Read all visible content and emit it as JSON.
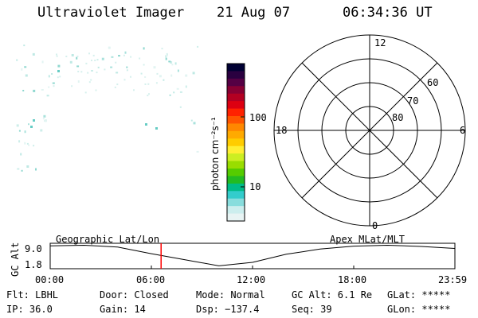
{
  "header": {
    "instrument": "Ultraviolet Imager",
    "date": "21 Aug 07",
    "time": "06:34:36 UT"
  },
  "colorbar": {
    "label": "photon cm⁻²s⁻¹",
    "ticks": [
      "100",
      "10"
    ],
    "colors": [
      "#000033",
      "#2a0040",
      "#550044",
      "#880033",
      "#b30022",
      "#dd0011",
      "#ff2200",
      "#ff5500",
      "#ff8800",
      "#ffaa00",
      "#ffcc00",
      "#ffee33",
      "#ccee22",
      "#99dd00",
      "#55cc00",
      "#22bb22",
      "#00bb88",
      "#33cccc",
      "#88dddd",
      "#cceeee",
      "#e8f4f4"
    ]
  },
  "polar": {
    "mlt_labels": [
      "12",
      "18",
      "6",
      "0"
    ],
    "lat_labels": [
      "60",
      "70",
      "80"
    ]
  },
  "timeline": {
    "y_axis_label": "GC Alt",
    "y_ticks": [
      "9.0",
      "1.8"
    ],
    "left_title": "Geographic Lat/Lon",
    "right_title": "Apex MLat/MLT",
    "x_ticks": [
      "00:00",
      "06:00",
      "12:00",
      "18:00",
      "23:59"
    ],
    "current_time_hours": 6.577,
    "current_time_color": "#ff0000",
    "altitude_samples": [
      [
        0,
        8.7
      ],
      [
        2,
        8.9
      ],
      [
        4,
        8.3
      ],
      [
        6,
        6.0
      ],
      [
        8,
        3.9
      ],
      [
        10,
        1.8
      ],
      [
        12,
        3.0
      ],
      [
        14,
        5.8
      ],
      [
        16,
        7.6
      ],
      [
        18,
        8.6
      ],
      [
        20,
        8.9
      ],
      [
        22,
        8.5
      ],
      [
        23.98,
        7.8
      ]
    ]
  },
  "status": {
    "filter": "Flt: LBHL",
    "door": "Door: Closed",
    "mode": "Mode: Normal",
    "gc_alt": "GC Alt: 6.1 Re",
    "glat": "GLat: *****",
    "ip": "IP: 36.0",
    "gain": "Gain: 14",
    "dsp": "Dsp: −137.4",
    "seq": "Seq: 39",
    "glon": "GLon: *****"
  }
}
